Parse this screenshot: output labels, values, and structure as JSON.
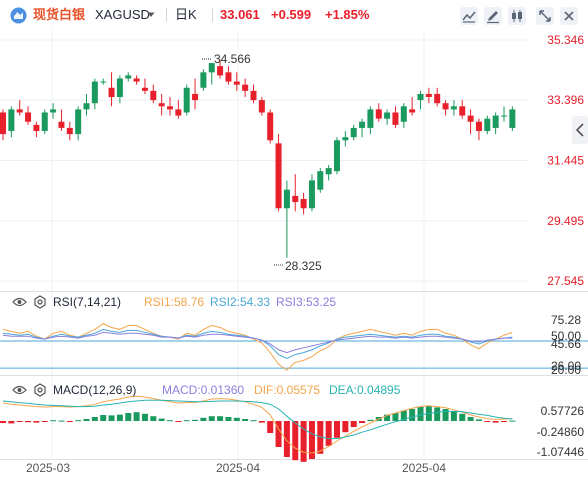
{
  "header": {
    "brand_label": "现货白银",
    "symbol": "XAGUSD",
    "interval_label": "日K",
    "last_price": "33.061",
    "change_abs": "+0.599",
    "change_pct": "+1.85%"
  },
  "colors": {
    "up": "#1a9a5e",
    "down": "#e8202b",
    "rsi1": "#f5a54b",
    "rsi2": "#4aa8d8",
    "rsi3": "#8a7fe0",
    "macd_label": "#8a7fe0",
    "dif": "#f5a54b",
    "dea": "#26b3b0",
    "level_line": "#4aa8d8",
    "price_axis": "#e8202b",
    "brand": "#e8532b"
  },
  "price_axis": {
    "ticks": [
      "35.346",
      "33.396",
      "31.445",
      "29.495",
      "27.545"
    ],
    "tick_values": [
      35.346,
      33.396,
      31.445,
      29.495,
      27.545
    ]
  },
  "annotations": {
    "high_label": "34.566",
    "low_label": "28.325"
  },
  "rsi": {
    "title": "RSI(7,14,21)",
    "rsi1_label": "RSI1:58.76",
    "rsi2_label": "RSI2:54.33",
    "rsi3_label": "RSI3:53.25",
    "ticks": [
      "75.28",
      "50.00",
      "45.66",
      "26.00",
      "20.00"
    ]
  },
  "macd": {
    "title": "MACD(12,26,9)",
    "macd_label": "MACD:0.01360",
    "dif_label": "DIF:0.05575",
    "dea_label": "DEA:0.04895",
    "ticks": [
      "0.57726",
      "-0.24860",
      "-1.07446"
    ]
  },
  "time_axis": {
    "labels": [
      "2025-03",
      "2025-04",
      "2025-04"
    ]
  },
  "chart_data": {
    "type": "candlestick",
    "candles": [
      [
        33.0,
        33.1,
        32.1,
        32.3
      ],
      [
        32.4,
        33.2,
        32.2,
        33.1
      ],
      [
        33.1,
        33.4,
        32.9,
        33.0
      ],
      [
        33.0,
        33.2,
        32.6,
        32.7
      ],
      [
        32.6,
        32.7,
        32.2,
        32.4
      ],
      [
        32.4,
        33.1,
        32.3,
        33.0
      ],
      [
        33.0,
        33.3,
        32.8,
        33.1
      ],
      [
        32.7,
        33.1,
        32.4,
        32.5
      ],
      [
        32.5,
        32.7,
        32.1,
        32.3
      ],
      [
        32.3,
        33.2,
        32.1,
        33.1
      ],
      [
        33.1,
        33.6,
        32.9,
        33.3
      ],
      [
        33.3,
        34.1,
        33.1,
        34.0
      ],
      [
        34.0,
        34.1,
        33.9,
        34.0
      ],
      [
        33.8,
        34.3,
        33.2,
        33.5
      ],
      [
        33.5,
        34.2,
        33.3,
        34.1
      ],
      [
        34.1,
        34.3,
        34.0,
        34.2
      ],
      [
        34.1,
        34.2,
        33.9,
        34.0
      ],
      [
        33.8,
        34.1,
        33.6,
        33.7
      ],
      [
        33.7,
        33.9,
        33.3,
        33.4
      ],
      [
        33.3,
        33.6,
        32.9,
        33.2
      ],
      [
        33.2,
        33.5,
        32.9,
        33.1
      ],
      [
        33.1,
        33.4,
        32.8,
        32.9
      ],
      [
        33.0,
        33.9,
        32.9,
        33.8
      ],
      [
        33.6,
        34.1,
        33.1,
        33.4
      ],
      [
        33.8,
        34.4,
        33.7,
        34.3
      ],
      [
        34.3,
        34.6,
        33.9,
        34.6
      ],
      [
        34.5,
        34.7,
        34.1,
        34.2
      ],
      [
        34.3,
        34.5,
        33.9,
        34.0
      ],
      [
        34.0,
        34.3,
        33.7,
        33.9
      ],
      [
        33.9,
        34.1,
        33.5,
        33.7
      ],
      [
        33.7,
        33.9,
        33.3,
        33.4
      ],
      [
        33.4,
        33.5,
        32.9,
        33.0
      ],
      [
        33.0,
        33.1,
        32.0,
        32.1
      ],
      [
        32.0,
        32.3,
        29.8,
        29.9
      ],
      [
        29.9,
        30.8,
        28.3,
        30.5
      ],
      [
        30.3,
        31.0,
        29.8,
        30.1
      ],
      [
        30.2,
        30.4,
        29.7,
        29.9
      ],
      [
        29.9,
        31.0,
        29.8,
        30.8
      ],
      [
        30.5,
        31.2,
        30.4,
        31.1
      ],
      [
        31.0,
        31.3,
        30.8,
        31.2
      ],
      [
        31.1,
        32.2,
        31.0,
        32.1
      ],
      [
        32.1,
        32.4,
        31.9,
        32.2
      ],
      [
        32.2,
        32.6,
        32.1,
        32.5
      ],
      [
        32.5,
        32.8,
        32.2,
        32.7
      ],
      [
        32.5,
        33.2,
        32.3,
        33.1
      ],
      [
        33.1,
        33.3,
        32.7,
        32.8
      ],
      [
        32.8,
        33.1,
        32.6,
        33.0
      ],
      [
        33.0,
        33.2,
        32.5,
        32.6
      ],
      [
        32.7,
        33.3,
        32.5,
        33.2
      ],
      [
        33.1,
        33.5,
        32.9,
        33.0
      ],
      [
        33.4,
        33.7,
        33.1,
        33.6
      ],
      [
        33.6,
        33.8,
        33.3,
        33.5
      ],
      [
        33.6,
        33.8,
        33.2,
        33.3
      ],
      [
        33.3,
        33.4,
        32.9,
        33.1
      ],
      [
        33.1,
        33.4,
        32.9,
        33.2
      ],
      [
        33.2,
        33.4,
        32.8,
        32.9
      ],
      [
        32.9,
        33.1,
        32.3,
        32.7
      ],
      [
        32.7,
        32.8,
        32.1,
        32.4
      ],
      [
        32.4,
        32.9,
        32.3,
        32.8
      ],
      [
        32.5,
        33.0,
        32.3,
        32.9
      ],
      [
        32.9,
        33.2,
        32.7,
        32.9
      ],
      [
        32.5,
        33.2,
        32.4,
        33.1
      ]
    ],
    "rsi1": [
      62,
      60,
      58,
      60,
      55,
      52,
      58,
      60,
      56,
      54,
      58,
      62,
      68,
      64,
      62,
      66,
      66,
      62,
      58,
      55,
      54,
      52,
      58,
      56,
      62,
      66,
      64,
      60,
      58,
      56,
      52,
      48,
      38,
      26,
      20,
      28,
      30,
      34,
      40,
      44,
      52,
      56,
      58,
      60,
      62,
      60,
      58,
      56,
      58,
      56,
      60,
      62,
      62,
      58,
      56,
      52,
      46,
      42,
      48,
      52,
      56,
      59
    ],
    "rsi2": [
      58,
      57,
      56,
      57,
      54,
      52,
      55,
      57,
      55,
      54,
      56,
      58,
      62,
      60,
      59,
      61,
      61,
      59,
      57,
      55,
      54,
      53,
      56,
      55,
      58,
      60,
      59,
      57,
      56,
      55,
      53,
      51,
      45,
      36,
      32,
      36,
      38,
      41,
      45,
      48,
      52,
      54,
      55,
      56,
      57,
      56,
      55,
      54,
      55,
      54,
      56,
      57,
      57,
      55,
      54,
      52,
      49,
      47,
      50,
      52,
      53,
      54
    ],
    "rsi3": [
      56,
      55,
      55,
      55,
      53,
      52,
      54,
      55,
      54,
      53,
      55,
      56,
      59,
      58,
      57,
      58,
      58,
      57,
      56,
      54,
      54,
      53,
      55,
      54,
      56,
      57,
      57,
      56,
      55,
      54,
      53,
      51,
      47,
      41,
      38,
      41,
      43,
      45,
      47,
      49,
      51,
      52,
      53,
      54,
      55,
      54,
      54,
      53,
      54,
      53,
      54,
      55,
      55,
      54,
      53,
      52,
      50,
      49,
      51,
      52,
      53,
      53
    ],
    "macd_hist": [
      -0.05,
      -0.06,
      -0.02,
      -0.03,
      -0.04,
      -0.02,
      0.02,
      0.01,
      -0.01,
      0.02,
      0.05,
      0.1,
      0.15,
      0.14,
      0.16,
      0.2,
      0.22,
      0.18,
      0.12,
      0.06,
      0.02,
      -0.02,
      0.02,
      0.03,
      0.08,
      0.12,
      0.12,
      0.1,
      0.08,
      0.05,
      0.02,
      -0.04,
      -0.3,
      -0.65,
      -0.9,
      -0.98,
      -1.02,
      -0.95,
      -0.82,
      -0.62,
      -0.42,
      -0.28,
      -0.15,
      -0.05,
      0.03,
      0.1,
      0.16,
      0.2,
      0.26,
      0.3,
      0.35,
      0.38,
      0.34,
      0.3,
      0.24,
      0.18,
      0.1,
      0.04,
      -0.01,
      -0.04,
      -0.02,
      0.01
    ],
    "dif": [
      0.45,
      0.42,
      0.4,
      0.38,
      0.36,
      0.35,
      0.36,
      0.36,
      0.35,
      0.36,
      0.38,
      0.42,
      0.48,
      0.52,
      0.55,
      0.6,
      0.62,
      0.6,
      0.56,
      0.52,
      0.48,
      0.45,
      0.46,
      0.46,
      0.5,
      0.55,
      0.56,
      0.55,
      0.52,
      0.48,
      0.42,
      0.34,
      0.15,
      -0.2,
      -0.5,
      -0.68,
      -0.78,
      -0.8,
      -0.75,
      -0.64,
      -0.5,
      -0.38,
      -0.26,
      -0.15,
      -0.05,
      0.05,
      0.14,
      0.2,
      0.26,
      0.32,
      0.36,
      0.38,
      0.36,
      0.33,
      0.28,
      0.22,
      0.15,
      0.1,
      0.06,
      0.04,
      0.05,
      0.056
    ],
    "dea": [
      0.5,
      0.48,
      0.46,
      0.44,
      0.42,
      0.4,
      0.39,
      0.38,
      0.37,
      0.36,
      0.36,
      0.37,
      0.4,
      0.42,
      0.45,
      0.48,
      0.5,
      0.52,
      0.52,
      0.52,
      0.51,
      0.5,
      0.49,
      0.48,
      0.48,
      0.49,
      0.5,
      0.5,
      0.5,
      0.49,
      0.48,
      0.46,
      0.42,
      0.3,
      0.12,
      -0.05,
      -0.2,
      -0.32,
      -0.4,
      -0.44,
      -0.44,
      -0.4,
      -0.35,
      -0.28,
      -0.22,
      -0.15,
      -0.08,
      -0.02,
      0.04,
      0.1,
      0.15,
      0.19,
      0.22,
      0.24,
      0.24,
      0.23,
      0.2,
      0.17,
      0.14,
      0.1,
      0.07,
      0.049
    ]
  }
}
